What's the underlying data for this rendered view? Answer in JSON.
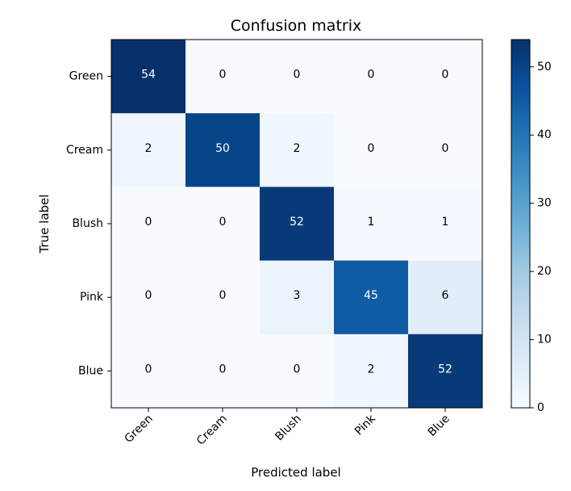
{
  "chart_data": {
    "type": "heatmap",
    "title": "Confusion matrix",
    "xlabel": "Predicted label",
    "ylabel": "True label",
    "x_categories": [
      "Green",
      "Cream",
      "Blush",
      "Pink",
      "Blue"
    ],
    "y_categories": [
      "Green",
      "Cream",
      "Blush",
      "Pink",
      "Blue"
    ],
    "values": [
      [
        54,
        0,
        0,
        0,
        0
      ],
      [
        2,
        50,
        2,
        0,
        0
      ],
      [
        0,
        0,
        52,
        1,
        1
      ],
      [
        0,
        0,
        3,
        45,
        6
      ],
      [
        0,
        0,
        0,
        2,
        52
      ]
    ],
    "colormap": "Blues",
    "value_range": [
      0,
      54
    ],
    "colorbar_ticks": [
      0,
      10,
      20,
      30,
      40,
      50
    ],
    "colors": {
      "low": "#f7fbff",
      "high": "#08306b",
      "text_dark": "#000000",
      "text_light": "#ffffff"
    }
  }
}
